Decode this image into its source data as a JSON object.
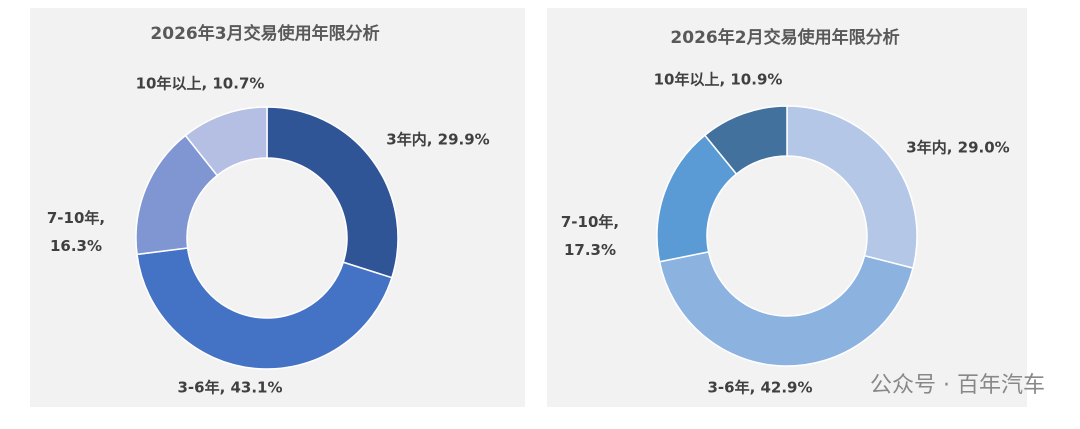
{
  "chart_data": [
    {
      "type": "donut",
      "title": "2026年3月交易使用年限分析",
      "values": [
        29.9,
        43.1,
        16.3,
        10.7
      ],
      "value_labels": [
        "3年内, 29.9%",
        "3-6年, 43.1%",
        "7-10年, 16.3%",
        "10年以上, 10.7%"
      ],
      "colors": [
        "#2f5597",
        "#4472c4",
        "#7f96d2",
        "#b4bfe3"
      ]
    },
    {
      "type": "donut",
      "title": "2026年2月交易使用年限分析",
      "values": [
        29.0,
        42.9,
        17.3,
        10.9
      ],
      "value_labels": [
        "3年内, 29.0%",
        "3-6年, 42.9%",
        "7-10年, 17.3%",
        "10年以上, 10.9%"
      ],
      "colors": [
        "#b4c7e7",
        "#8cb2e0",
        "#5b9bd5",
        "#41719c"
      ]
    }
  ],
  "watermark": "公众号 · 百年汽车"
}
